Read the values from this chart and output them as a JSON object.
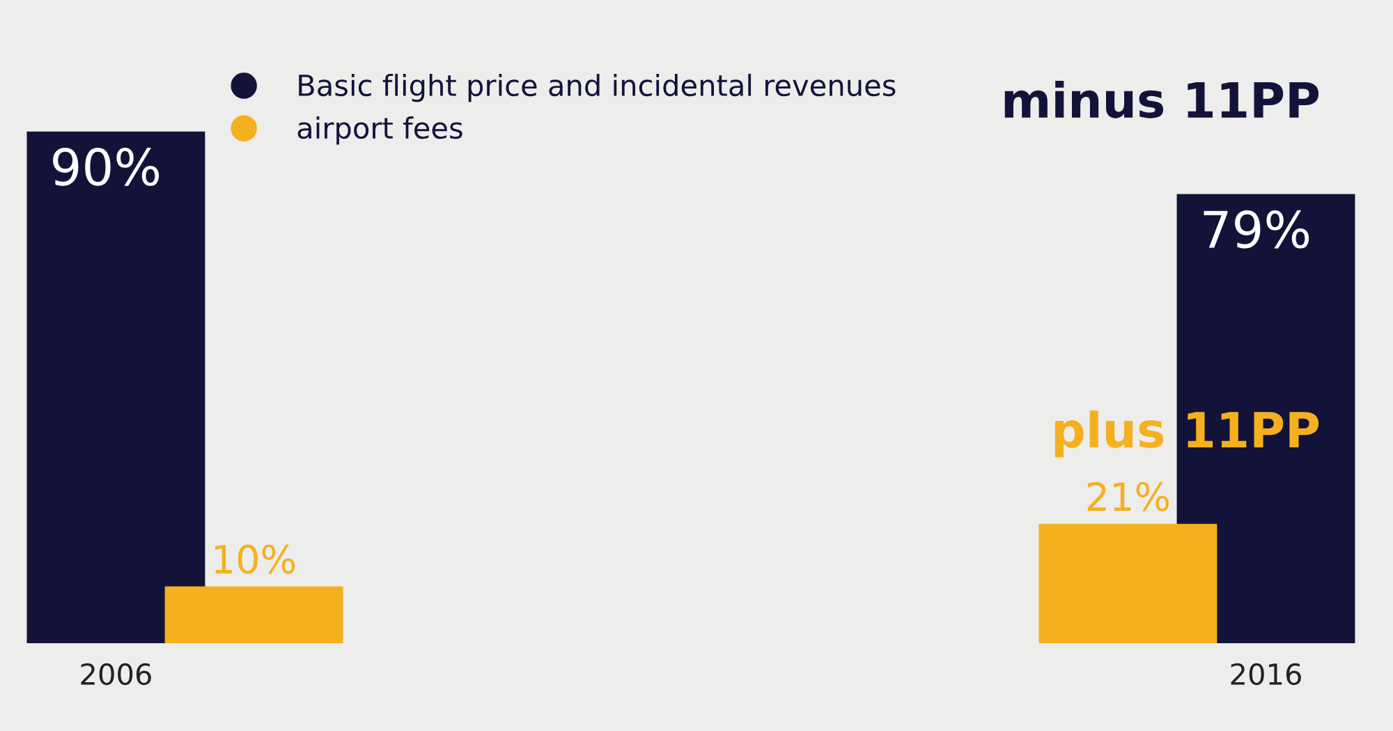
{
  "chart_data": {
    "type": "bar",
    "categories": [
      "2006",
      "2016"
    ],
    "series": [
      {
        "name": "Basic flight price and incidental revenues",
        "color": "#13133a",
        "values": [
          90,
          79
        ],
        "value_labels": [
          "90%",
          "79%"
        ]
      },
      {
        "name": "airport fees",
        "color": "#f5b01f",
        "values": [
          10,
          21
        ],
        "value_labels": [
          "10%",
          "21%"
        ]
      }
    ],
    "annotations": [
      "minus 11PP",
      "plus 11PP"
    ],
    "legend": "top",
    "grid": false
  }
}
